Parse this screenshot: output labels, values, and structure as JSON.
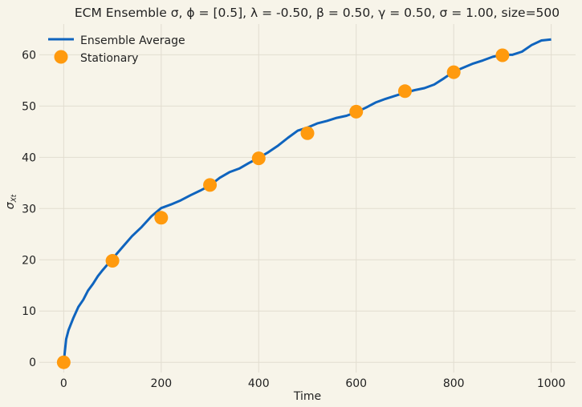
{
  "chart_data": {
    "type": "line",
    "title": "ECM Ensemble σ, ϕ = [0.5], λ = -0.50, β = 0.50, γ = 0.50, σ = 1.00, size=500",
    "xlabel": "Time",
    "ylabel": "σ",
    "ylabel_subscript": "Xt",
    "xlim": [
      -50,
      1050
    ],
    "ylim": [
      -2,
      66
    ],
    "xticks": [
      0,
      200,
      400,
      600,
      800,
      1000
    ],
    "yticks": [
      0,
      10,
      20,
      30,
      40,
      50,
      60
    ],
    "xtick_labels": [
      "0",
      "200",
      "400",
      "600",
      "800",
      "1000"
    ],
    "ytick_labels": [
      "0",
      "10",
      "20",
      "30",
      "40",
      "50",
      "60"
    ],
    "grid": true,
    "legend_position": "top-left",
    "series": [
      {
        "name": "Ensemble Average",
        "kind": "line",
        "color": "#0f64be",
        "x": [
          0,
          5,
          10,
          20,
          30,
          40,
          50,
          60,
          70,
          80,
          90,
          100,
          120,
          140,
          160,
          180,
          200,
          220,
          240,
          260,
          280,
          300,
          320,
          340,
          360,
          380,
          400,
          420,
          440,
          460,
          480,
          500,
          520,
          540,
          560,
          580,
          600,
          620,
          640,
          660,
          680,
          700,
          720,
          740,
          760,
          780,
          800,
          820,
          840,
          860,
          880,
          900,
          920,
          940,
          960,
          980,
          1000
        ],
        "y": [
          0,
          4.5,
          6.3,
          8.7,
          10.8,
          12.2,
          14.0,
          15.3,
          16.8,
          18.0,
          19.1,
          20.2,
          22.4,
          24.6,
          26.4,
          28.5,
          30.1,
          30.8,
          31.6,
          32.6,
          33.5,
          34.5,
          36.0,
          37.1,
          37.8,
          38.9,
          39.9,
          41.0,
          42.3,
          43.8,
          45.2,
          45.8,
          46.6,
          47.1,
          47.7,
          48.1,
          48.8,
          49.7,
          50.7,
          51.4,
          52.0,
          52.6,
          53.1,
          53.5,
          54.2,
          55.4,
          56.7,
          57.5,
          58.3,
          58.9,
          59.6,
          60.0,
          60.0,
          60.6,
          61.9,
          62.8,
          63.0
        ]
      },
      {
        "name": "Stationary",
        "kind": "scatter",
        "color": "#ff9a0e",
        "x": [
          0,
          100,
          200,
          300,
          400,
          500,
          600,
          700,
          800,
          900
        ],
        "y": [
          0,
          19.8,
          28.2,
          34.6,
          39.8,
          44.7,
          48.9,
          52.9,
          56.6,
          59.9
        ]
      }
    ]
  }
}
